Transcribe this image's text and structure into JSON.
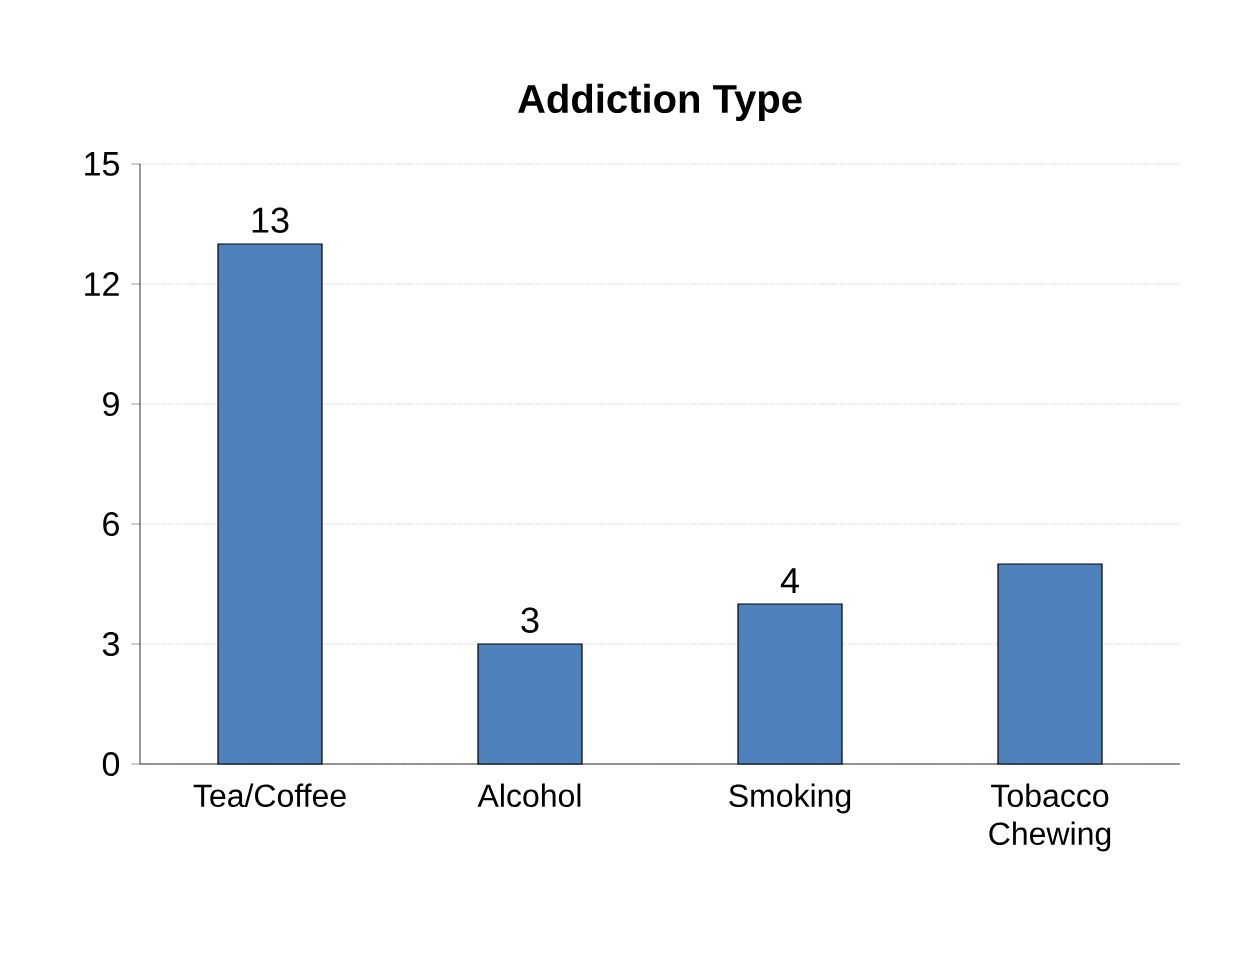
{
  "chart_data": {
    "type": "bar",
    "title": "Addiction Type",
    "categories": [
      "Tea/Coffee",
      "Alcohol",
      "Smoking",
      "Tobacco Chewing"
    ],
    "values": [
      13,
      3,
      4,
      5
    ],
    "value_labels": [
      "13",
      "3",
      "4",
      null
    ],
    "color": "#4f81bd",
    "ylim": [
      0,
      15
    ],
    "yticks": [
      0,
      3,
      6,
      9,
      12,
      15
    ],
    "grid": "y"
  }
}
